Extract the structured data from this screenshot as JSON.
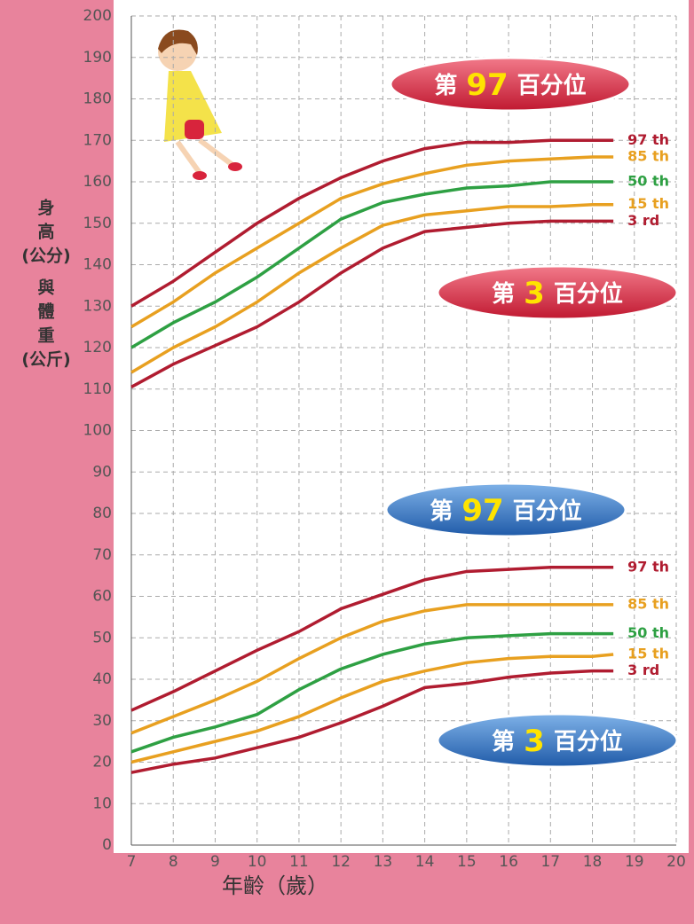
{
  "chart_data": {
    "type": "line",
    "y_label": [
      "身",
      "高",
      "(公分)",
      "與",
      "體",
      "重",
      "(公斤)"
    ],
    "x_label": "年齡（歲）",
    "x": [
      7,
      8,
      9,
      10,
      11,
      12,
      13,
      14,
      15,
      16,
      17,
      18,
      18.5
    ],
    "xlim": [
      7,
      20
    ],
    "xticks": [
      7,
      8,
      9,
      10,
      11,
      12,
      13,
      14,
      15,
      16,
      17,
      18,
      19,
      20
    ],
    "ylim": [
      0,
      200
    ],
    "yticks": [
      0,
      10,
      20,
      30,
      40,
      50,
      60,
      70,
      80,
      90,
      100,
      110,
      120,
      130,
      140,
      150,
      160,
      170,
      180,
      190,
      200
    ],
    "grid": true,
    "series": [
      {
        "name": "97 th",
        "color": "#b01c30",
        "values": [
          130,
          136,
          143,
          150,
          156,
          161,
          165,
          168,
          169.5,
          169.5,
          170,
          170,
          170
        ]
      },
      {
        "name": "85 th",
        "color": "#e8a020",
        "values": [
          125,
          131,
          138,
          144,
          150,
          156,
          159.5,
          162,
          164,
          165,
          165.5,
          166,
          166
        ]
      },
      {
        "name": "50 th",
        "color": "#2ea043",
        "values": [
          120,
          126,
          131,
          137,
          144,
          151,
          155,
          157,
          158.5,
          159,
          160,
          160,
          160
        ]
      },
      {
        "name": "15 th",
        "color": "#e8a020",
        "values": [
          114,
          120,
          125,
          131,
          138,
          144,
          149.5,
          152,
          153,
          154,
          154,
          154.5,
          154.5
        ]
      },
      {
        "name": "3 rd",
        "color": "#b01c30",
        "values": [
          110.5,
          116,
          120.5,
          125,
          131,
          138,
          144,
          148,
          149,
          150,
          150.5,
          150.5,
          150.5
        ]
      },
      {
        "name": "97 th",
        "color": "#b01c30",
        "values": [
          32.5,
          37,
          42,
          47,
          51.5,
          57,
          60.5,
          64,
          66,
          66.5,
          67,
          67,
          67
        ]
      },
      {
        "name": "85 th",
        "color": "#e8a020",
        "values": [
          27,
          31,
          35,
          39.5,
          45,
          50,
          54,
          56.5,
          58,
          58,
          58,
          58,
          58
        ]
      },
      {
        "name": "50 th",
        "color": "#2ea043",
        "values": [
          22.5,
          26,
          28.5,
          31.5,
          37.5,
          42.5,
          46,
          48.5,
          50,
          50.5,
          51,
          51,
          51
        ]
      },
      {
        "name": "15 th",
        "color": "#e8a020",
        "values": [
          20,
          22.5,
          25,
          27.5,
          31,
          35.5,
          39.5,
          42,
          44,
          45,
          45.5,
          45.5,
          46
        ]
      },
      {
        "name": "3 rd",
        "color": "#b01c30",
        "values": [
          17.5,
          19.5,
          21,
          23.5,
          26,
          29.5,
          33.5,
          38,
          39,
          40.5,
          41.5,
          42,
          42
        ]
      }
    ],
    "annotations": [
      {
        "parts": [
          "第",
          "97",
          "百分位"
        ],
        "color": "red"
      },
      {
        "parts": [
          "第",
          "3",
          "百分位"
        ],
        "color": "red"
      },
      {
        "parts": [
          "第",
          "97",
          "百分位"
        ],
        "color": "blue"
      },
      {
        "parts": [
          "第",
          "3",
          "百分位"
        ],
        "color": "blue"
      }
    ]
  }
}
